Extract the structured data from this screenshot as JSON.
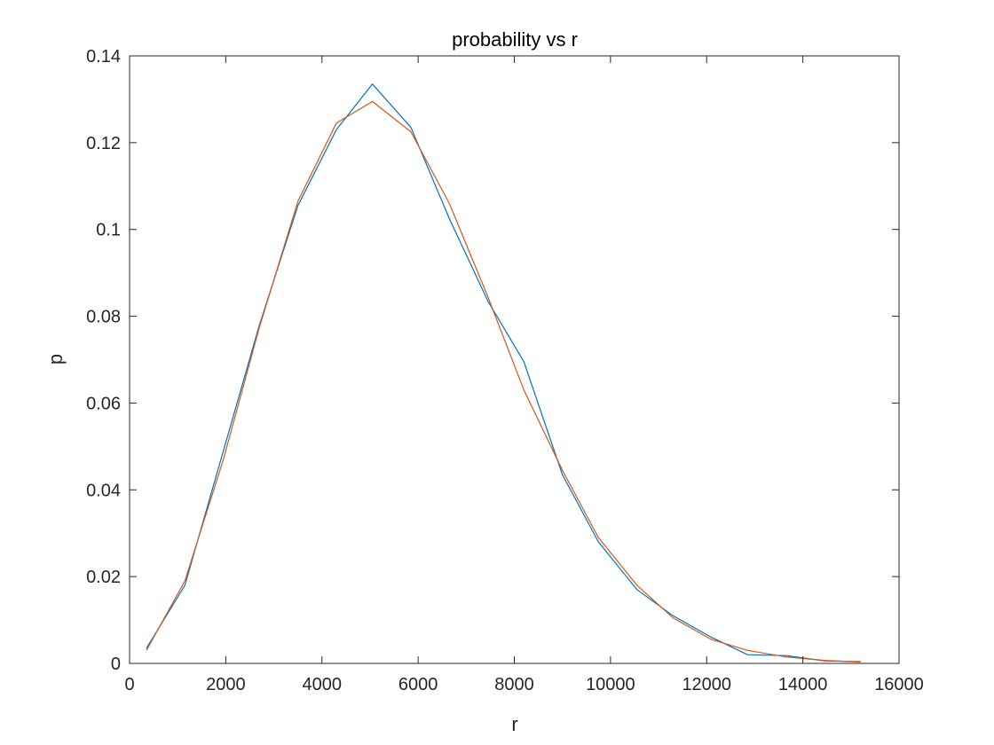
{
  "chart_data": {
    "type": "line",
    "title": "probability vs r",
    "xlabel": "r",
    "ylabel": "p",
    "xlim": [
      0,
      16000
    ],
    "ylim": [
      0,
      0.14
    ],
    "xticks": [
      0,
      2000,
      4000,
      6000,
      8000,
      10000,
      12000,
      14000,
      16000
    ],
    "xtick_labels": [
      "0",
      "2000",
      "4000",
      "6000",
      "8000",
      "10000",
      "12000",
      "14000",
      "16000"
    ],
    "yticks": [
      0,
      0.02,
      0.04,
      0.06,
      0.08,
      0.1,
      0.12,
      0.14
    ],
    "ytick_labels": [
      "0",
      "0.02",
      "0.04",
      "0.06",
      "0.08",
      "0.1",
      "0.12",
      "0.14"
    ],
    "grid": false,
    "legend": "none",
    "series": [
      {
        "color": "#0072BD",
        "x": [
          350,
          1150,
          1950,
          2700,
          3500,
          4300,
          5050,
          5850,
          6650,
          7450,
          8200,
          9000,
          9750,
          10550,
          11300,
          12100,
          12850,
          13650,
          14450,
          15200
        ],
        "y": [
          0.0035,
          0.018,
          0.049,
          0.078,
          0.1055,
          0.123,
          0.1335,
          0.1235,
          0.1025,
          0.0835,
          0.0695,
          0.0435,
          0.028,
          0.017,
          0.011,
          0.006,
          0.002,
          0.0018,
          0.0006,
          0.0004
        ]
      },
      {
        "color": "#D95319",
        "x": [
          350,
          1150,
          1950,
          2700,
          3500,
          4300,
          5050,
          5850,
          6650,
          7450,
          8200,
          9000,
          9750,
          10550,
          11300,
          12100,
          12850,
          13650,
          14450,
          15200
        ],
        "y": [
          0.003,
          0.019,
          0.047,
          0.0775,
          0.1065,
          0.1245,
          0.1295,
          0.1225,
          0.106,
          0.0845,
          0.063,
          0.0445,
          0.029,
          0.018,
          0.0105,
          0.0055,
          0.003,
          0.0015,
          0.0007,
          0.0003
        ]
      }
    ]
  }
}
